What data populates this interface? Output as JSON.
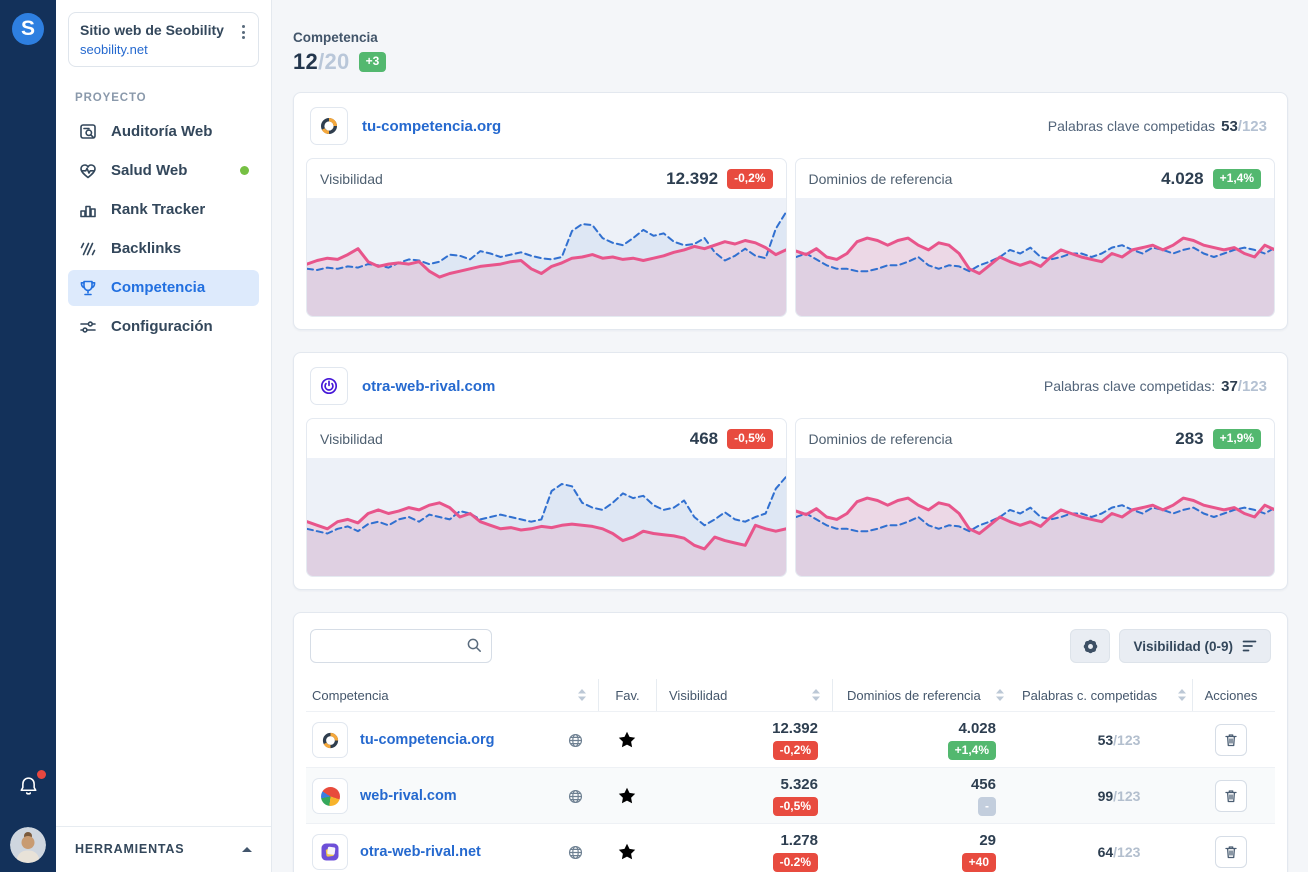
{
  "brand": {
    "logo_letter": "S"
  },
  "sidebar": {
    "project_selector": {
      "title": "Sitio web de Seobility",
      "domain": "seobility.net"
    },
    "section_label": "PROYECTO",
    "items": [
      {
        "label": "Auditoría Web",
        "icon": "audit-document-magnifier-icon"
      },
      {
        "label": "Salud Web",
        "icon": "heart-pulse-icon",
        "status_dot": true
      },
      {
        "label": "Rank Tracker",
        "icon": "bar-chart-icon"
      },
      {
        "label": "Backlinks",
        "icon": "backlinks-slashes-icon"
      },
      {
        "label": "Competencia",
        "icon": "trophy-icon",
        "active": true
      },
      {
        "label": "Configuración",
        "icon": "sliders-icon"
      }
    ],
    "tools_label": "HERRAMIENTAS"
  },
  "header": {
    "title": "Competencia",
    "count_current": "12",
    "count_total": "/20",
    "badge": "+3",
    "badge_color": "green"
  },
  "competitor_cards": [
    {
      "domain": "tu-competencia.org",
      "favicon": "ring-icon",
      "keywords_label": "Palabras clave competidas",
      "keywords_value": "53",
      "keywords_total": "/123",
      "panels": [
        {
          "label": "Visibilidad",
          "value": "12.392",
          "change": "-0,2%",
          "change_color": "red"
        },
        {
          "label": "Dominios de referencia",
          "value": "4.028",
          "change": "+1,4%",
          "change_color": "green"
        }
      ]
    },
    {
      "domain": "otra-web-rival.com",
      "favicon": "power-circle-icon",
      "keywords_label": "Palabras clave competidas:",
      "keywords_value": "37",
      "keywords_total": "/123",
      "panels": [
        {
          "label": "Visibilidad",
          "value": "468",
          "change": "-0,5%",
          "change_color": "red"
        },
        {
          "label": "Dominios de referencia",
          "value": "283",
          "change": "+1,9%",
          "change_color": "green"
        }
      ]
    }
  ],
  "table": {
    "sort_button_label": "Visibilidad (0-9)",
    "columns": [
      "Competencia",
      "Fav.",
      "Visibilidad",
      "Dominios de referencia",
      "Palabras c. competidas",
      "Acciones"
    ],
    "rows": [
      {
        "domain": "tu-competencia.org",
        "favicon": "ring-icon",
        "favorite": true,
        "visibility": "12.392",
        "visibility_change": "-0,2%",
        "visibility_change_color": "red",
        "ref_domains": "4.028",
        "ref_domains_change": "+1,4%",
        "ref_domains_change_color": "green",
        "keywords": "53",
        "keywords_total": "/123"
      },
      {
        "domain": "web-rival.com",
        "favicon": "pie-icon",
        "favorite": false,
        "visibility": "5.326",
        "visibility_change": "-0,5%",
        "visibility_change_color": "red",
        "ref_domains": "456",
        "ref_domains_change": "-",
        "ref_domains_change_color": "gray",
        "keywords": "99",
        "keywords_total": "/123"
      },
      {
        "domain": "otra-web-rival.net",
        "favicon": "purple-stack-icon",
        "favorite": false,
        "visibility": "1.278",
        "visibility_change": "-0.2%",
        "visibility_change_color": "red",
        "ref_domains": "29",
        "ref_domains_change": "+40",
        "ref_domains_change_color": "red",
        "keywords": "64",
        "keywords_total": "/123"
      }
    ]
  },
  "colors": {
    "rail_navy": "#13315a",
    "accent_blue": "#2569cf",
    "active_item_bg": "#ddeafc",
    "badge_red": "#e84b3f",
    "badge_green": "#53b86f",
    "badge_gray": "#c3cedd",
    "chart_pink": "#e8558b",
    "chart_blue": "#3170d0",
    "chart_bg": "#edf1f8",
    "star_yellow": "#f0b429"
  },
  "chart_data": [
    {
      "type": "area",
      "title": "tu-competencia.org – Visibilidad (sparkline, sin ejes)",
      "grid": false,
      "legend": "none",
      "ylim": [
        0,
        100
      ],
      "y_unit": "relative-estimate-0-100",
      "series": [
        {
          "name": "pink_solid_area",
          "color": "#e8558b",
          "fill": "rgba(232,85,139,0.16)",
          "style": "solid",
          "values": [
            44,
            47,
            49,
            48,
            52,
            57,
            46,
            42,
            44,
            45,
            44,
            46,
            38,
            33,
            36,
            38,
            40,
            42,
            43,
            44,
            46,
            47,
            40,
            36,
            42,
            45,
            49,
            50,
            52,
            49,
            50,
            48,
            49,
            47,
            49,
            51,
            54,
            56,
            59,
            57,
            60,
            63,
            61,
            64,
            62,
            58,
            52,
            56
          ]
        },
        {
          "name": "blue_dashed_line",
          "color": "#3170d0",
          "fill": "rgba(49,112,208,0.08)",
          "style": "dashed",
          "values": [
            40,
            39,
            41,
            40,
            42,
            41,
            44,
            43,
            41,
            45,
            48,
            47,
            44,
            46,
            52,
            51,
            48,
            55,
            53,
            50,
            52,
            54,
            51,
            49,
            48,
            50,
            72,
            78,
            77,
            66,
            62,
            60,
            66,
            73,
            68,
            70,
            63,
            60,
            61,
            66,
            54,
            47,
            51,
            57,
            51,
            49,
            74,
            88
          ]
        }
      ]
    },
    {
      "type": "area",
      "title": "tu-competencia.org – Dominios de referencia (sparkline, sin ejes)",
      "grid": false,
      "legend": "none",
      "ylim": [
        0,
        100
      ],
      "y_unit": "relative-estimate-0-100",
      "series": [
        {
          "name": "pink_solid_area",
          "color": "#e8558b",
          "fill": "rgba(232,85,139,0.16)",
          "style": "solid",
          "values": [
            55,
            52,
            57,
            50,
            48,
            53,
            63,
            66,
            64,
            60,
            64,
            66,
            60,
            56,
            62,
            60,
            53,
            40,
            36,
            43,
            50,
            46,
            43,
            46,
            42,
            50,
            56,
            53,
            50,
            48,
            46,
            53,
            50,
            56,
            58,
            60,
            56,
            60,
            66,
            64,
            60,
            58,
            56,
            58,
            53,
            50,
            60,
            56
          ]
        },
        {
          "name": "blue_dashed_line",
          "color": "#3170d0",
          "fill": "rgba(49,112,208,0.08)",
          "style": "dashed",
          "values": [
            50,
            53,
            48,
            43,
            40,
            40,
            38,
            38,
            40,
            43,
            43,
            46,
            50,
            43,
            40,
            43,
            42,
            38,
            43,
            46,
            50,
            56,
            53,
            58,
            50,
            48,
            50,
            53,
            53,
            50,
            53,
            58,
            60,
            56,
            53,
            58,
            56,
            53,
            56,
            58,
            53,
            50,
            53,
            56,
            58,
            56,
            53,
            58
          ]
        }
      ]
    },
    {
      "type": "area",
      "title": "otra-web-rival.com – Visibilidad (sparkline, sin ejes)",
      "grid": false,
      "legend": "none",
      "ylim": [
        0,
        100
      ],
      "y_unit": "relative-estimate-0-100",
      "series": [
        {
          "name": "pink_solid_area",
          "color": "#e8558b",
          "fill": "rgba(232,85,139,0.16)",
          "style": "solid",
          "values": [
            46,
            43,
            40,
            46,
            48,
            45,
            53,
            56,
            53,
            55,
            58,
            56,
            60,
            62,
            58,
            50,
            53,
            46,
            43,
            40,
            41,
            39,
            40,
            42,
            41,
            43,
            44,
            43,
            42,
            40,
            36,
            30,
            33,
            38,
            36,
            35,
            34,
            32,
            26,
            23,
            33,
            30,
            28,
            26,
            43,
            40,
            38,
            40
          ]
        },
        {
          "name": "blue_dashed_line",
          "color": "#3170d0",
          "fill": "rgba(49,112,208,0.08)",
          "style": "dashed",
          "values": [
            40,
            38,
            36,
            40,
            42,
            38,
            44,
            46,
            43,
            48,
            50,
            46,
            52,
            50,
            48,
            55,
            53,
            48,
            50,
            52,
            50,
            48,
            46,
            48,
            72,
            78,
            76,
            62,
            58,
            56,
            62,
            70,
            66,
            68,
            60,
            56,
            58,
            64,
            50,
            43,
            48,
            54,
            48,
            46,
            50,
            53,
            74,
            84
          ]
        }
      ]
    },
    {
      "type": "area",
      "title": "otra-web-rival.com – Dominios de referencia (sparkline, sin ejes)",
      "grid": false,
      "legend": "none",
      "ylim": [
        0,
        100
      ],
      "y_unit": "relative-estimate-0-100",
      "series": [
        {
          "name": "pink_solid_area",
          "color": "#e8558b",
          "fill": "rgba(232,85,139,0.16)",
          "style": "solid",
          "values": [
            55,
            52,
            57,
            50,
            48,
            53,
            63,
            66,
            64,
            60,
            64,
            66,
            60,
            56,
            62,
            60,
            53,
            40,
            36,
            43,
            50,
            46,
            43,
            46,
            42,
            50,
            56,
            53,
            50,
            48,
            46,
            53,
            50,
            56,
            58,
            60,
            56,
            60,
            66,
            64,
            60,
            58,
            56,
            58,
            53,
            50,
            60,
            56
          ]
        },
        {
          "name": "blue_dashed_line",
          "color": "#3170d0",
          "fill": "rgba(49,112,208,0.08)",
          "style": "dashed",
          "values": [
            50,
            53,
            48,
            43,
            40,
            40,
            38,
            38,
            40,
            43,
            43,
            46,
            50,
            43,
            40,
            43,
            42,
            38,
            43,
            46,
            50,
            56,
            53,
            58,
            50,
            48,
            50,
            53,
            53,
            50,
            53,
            58,
            60,
            56,
            53,
            58,
            56,
            53,
            56,
            58,
            53,
            50,
            53,
            56,
            58,
            56,
            53,
            58
          ]
        }
      ]
    }
  ]
}
